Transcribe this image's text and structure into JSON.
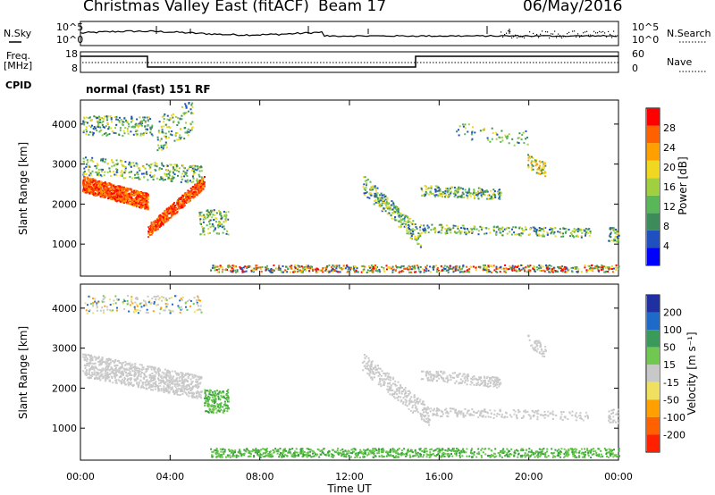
{
  "header": {
    "station": "Christmas Valley East (fitACF)",
    "beam": "Beam 17",
    "date": "06/May/2016"
  },
  "strip_labels": {
    "nsky": "N.Sky",
    "nsearch": "N.Search",
    "freq": "Freq.",
    "freq_unit": "[MHz]",
    "nave": "Nave",
    "cpid": "CPID",
    "cpid_value": "normal (fast) 151 RF"
  },
  "noise_strip": {
    "left_ticks": [
      "10^5",
      "10^0"
    ],
    "right_ticks": [
      "10^5",
      "10^0"
    ]
  },
  "freq_strip": {
    "left_ticks": [
      "18",
      "8"
    ],
    "right_ticks": [
      "60",
      "0"
    ]
  },
  "chart_data": [
    {
      "type": "heatmap",
      "name": "power",
      "ylabel": "Slant Range [km]",
      "yticks": [
        1000,
        2000,
        3000,
        4000
      ],
      "ylim": [
        200,
        4600
      ],
      "xlim": [
        0,
        24
      ],
      "colorbar": {
        "label": "Power [dB]",
        "ticks": [
          4,
          8,
          12,
          16,
          20,
          24,
          28
        ],
        "range": [
          0,
          32
        ]
      }
    },
    {
      "type": "heatmap",
      "name": "velocity",
      "ylabel": "Slant Range [km]",
      "yticks": [
        1000,
        2000,
        3000,
        4000
      ],
      "ylim": [
        200,
        4600
      ],
      "xlim": [
        0,
        24
      ],
      "xlabel": "Time UT",
      "xticks": [
        "00:00",
        "04:00",
        "08:00",
        "12:00",
        "16:00",
        "20:00",
        "00:00"
      ],
      "colorbar": {
        "label": "Velocity [m s⁻¹]",
        "ticks": [
          200,
          100,
          50,
          15,
          -15,
          -50,
          -100,
          -200
        ]
      }
    }
  ],
  "colors": {
    "power": [
      "#0000ff",
      "#2050c0",
      "#3c8c5a",
      "#58b858",
      "#a0d040",
      "#f0d820",
      "#ffa000",
      "#ff6000",
      "#ff0000"
    ],
    "velocity": [
      "#2030a0",
      "#1e6ac8",
      "#3a9a5a",
      "#70c850",
      "#c8c8c8",
      "#f0e060",
      "#ffa000",
      "#ff6000",
      "#ff2000"
    ],
    "ground": "#c8c8c8"
  }
}
